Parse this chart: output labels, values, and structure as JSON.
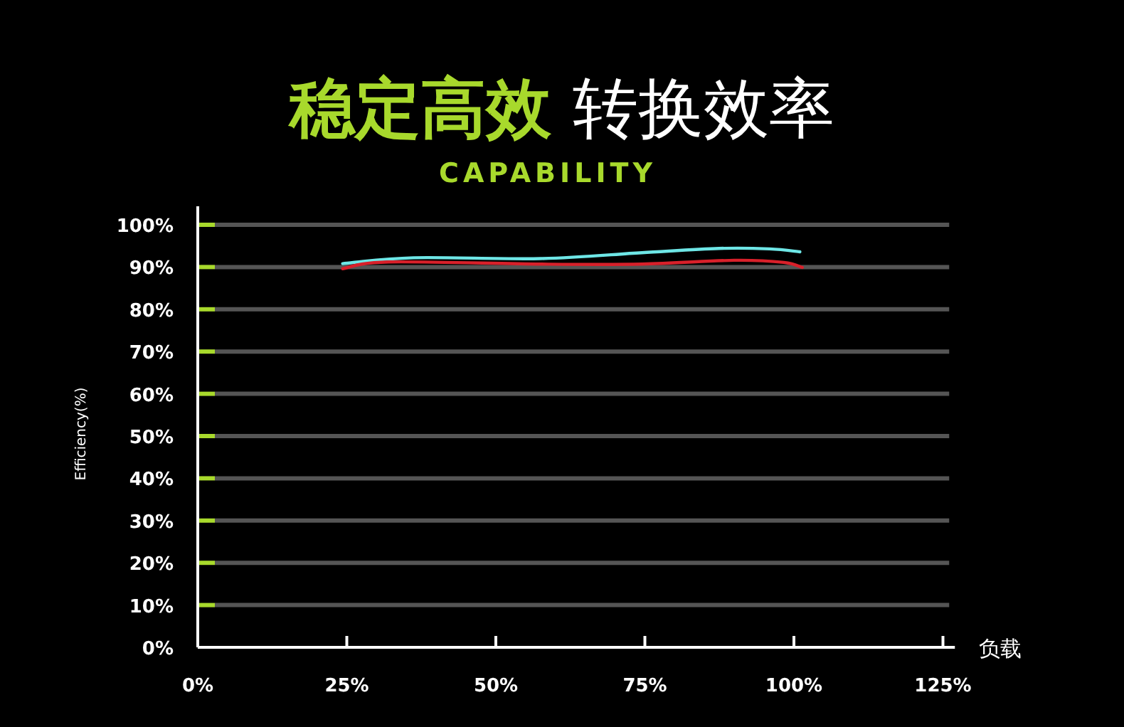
{
  "chart_data": {
    "type": "line",
    "title": "稳定高效 转换效率",
    "subtitle": "CAPABILITY",
    "xlabel": "负载",
    "ylabel": "Efficiency(%)",
    "xlim": [
      0,
      127
    ],
    "ylim": [
      0,
      100
    ],
    "xticks": [
      {
        "value": 0,
        "label": "0%"
      },
      {
        "value": 25,
        "label": "25%"
      },
      {
        "value": 50,
        "label": "50%"
      },
      {
        "value": 75,
        "label": "75%"
      },
      {
        "value": 100,
        "label": "100%"
      },
      {
        "value": 125,
        "label": "125%"
      }
    ],
    "yticks": [
      {
        "value": 0,
        "label": "0%"
      },
      {
        "value": 10,
        "label": "10%"
      },
      {
        "value": 20,
        "label": "20%"
      },
      {
        "value": 30,
        "label": "30%"
      },
      {
        "value": 40,
        "label": "40%"
      },
      {
        "value": 50,
        "label": "50%"
      },
      {
        "value": 60,
        "label": "60%"
      },
      {
        "value": 70,
        "label": "70%"
      },
      {
        "value": 80,
        "label": "80%"
      },
      {
        "value": 90,
        "label": "90%"
      },
      {
        "value": 100,
        "label": "100%"
      }
    ],
    "grid": "y",
    "marker": "none",
    "line_style": "solid",
    "series": [
      {
        "color": "#6ee6e6",
        "x": [
          24.3,
          36.2,
          57.5,
          74.5,
          87.4,
          95.9,
          101
        ],
        "values": [
          90.8,
          92.2,
          92.0,
          93.4,
          94.4,
          94.3,
          93.6
        ]
      },
      {
        "color": "#d8202a",
        "x": [
          24.3,
          32,
          57.5,
          74.5,
          90,
          98.3,
          101.4
        ],
        "values": [
          89.6,
          91.2,
          90.7,
          90.7,
          91.6,
          91.1,
          89.9
        ]
      }
    ]
  }
}
